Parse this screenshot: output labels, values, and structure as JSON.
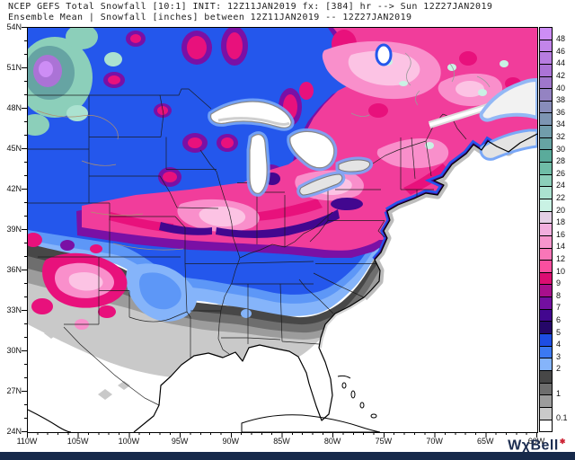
{
  "header": {
    "title_line1": "NCEP GEFS Total Snowfall [10:1] INIT: 12Z11JAN2019 fx: [384] hr --> Sun 12Z27JAN2019",
    "title_line2": "Ensemble Mean | Snowfall [inches] between 12Z11JAN2019 -- 12Z27JAN2019"
  },
  "axes": {
    "lat_labels": [
      "54N",
      "51N",
      "48N",
      "45N",
      "42N",
      "39N",
      "36N",
      "33N",
      "30N",
      "27N",
      "24N"
    ],
    "lon_labels": [
      "110W",
      "105W",
      "100W",
      "95W",
      "90W",
      "85W",
      "80W",
      "75W",
      "70W",
      "65W",
      "60W"
    ]
  },
  "colorbar": {
    "description": "snowfall inches scale, top=48+, bottom=0.1",
    "segments": [
      {
        "color": "#cd8df5",
        "label": "48"
      },
      {
        "color": "#c285ea",
        "label": "46"
      },
      {
        "color": "#b77ce0",
        "label": "44"
      },
      {
        "color": "#ab73d6",
        "label": "42"
      },
      {
        "color": "#a077cb",
        "label": "40"
      },
      {
        "color": "#9483c2",
        "label": "38"
      },
      {
        "color": "#888dba",
        "label": "36"
      },
      {
        "color": "#7d95b2",
        "label": "34"
      },
      {
        "color": "#719dab",
        "label": "32"
      },
      {
        "color": "#66a4a3",
        "label": "30"
      },
      {
        "color": "#5aab9b",
        "label": "28"
      },
      {
        "color": "#6fbda7",
        "label": "26"
      },
      {
        "color": "#8ccfba",
        "label": "24"
      },
      {
        "color": "#abe2d0",
        "label": "22"
      },
      {
        "color": "#c9f2e4",
        "label": "20"
      },
      {
        "color": "#e4d0e6",
        "label": "18"
      },
      {
        "color": "#f2aede",
        "label": "16"
      },
      {
        "color": "#f795cd",
        "label": "14"
      },
      {
        "color": "#f976b8",
        "label": "12"
      },
      {
        "color": "#fa4f9f",
        "label": "10"
      },
      {
        "color": "#dc0d72",
        "label": "9"
      },
      {
        "color": "#a80f8c",
        "label": "8"
      },
      {
        "color": "#730fa0",
        "label": "7"
      },
      {
        "color": "#42078f",
        "label": "6"
      },
      {
        "color": "#250768",
        "label": "5"
      },
      {
        "color": "#1d4de4",
        "label": "4"
      },
      {
        "color": "#3b79f2",
        "label": "3"
      },
      {
        "color": "#85b4fa",
        "label": "2"
      },
      {
        "color": "#474747",
        "label": ""
      },
      {
        "color": "#6e6e6e",
        "label": "1"
      },
      {
        "color": "#9c9c9c",
        "label": ""
      },
      {
        "color": "#c9c9c9",
        "label": "0.1"
      },
      {
        "color": "#ffffff",
        "label": ""
      }
    ]
  },
  "watermark": {
    "text": "WχBell",
    "dot": "✱"
  },
  "footer": {
    "bar_color": "#16294a"
  },
  "map_palette": {
    "base_blue": "#2457ec",
    "light_blue": "#85b4fa",
    "mid_blue": "#5d97f7",
    "pink_band": "#f13d9b",
    "light_pink": "#f98fcb",
    "pale_pink": "#fcc3e4",
    "deep_magenta": "#e8117c",
    "purple_rim": "#7a10a5",
    "dark_violet": "#42078f",
    "gray1": "#474747",
    "gray2": "#6e6e6e",
    "gray3": "#9c9c9c",
    "gray4": "#c9c9c9",
    "pale_cyan": "#c9f2e4",
    "teal": "#66a4a3",
    "lavender": "#ab73d6"
  }
}
